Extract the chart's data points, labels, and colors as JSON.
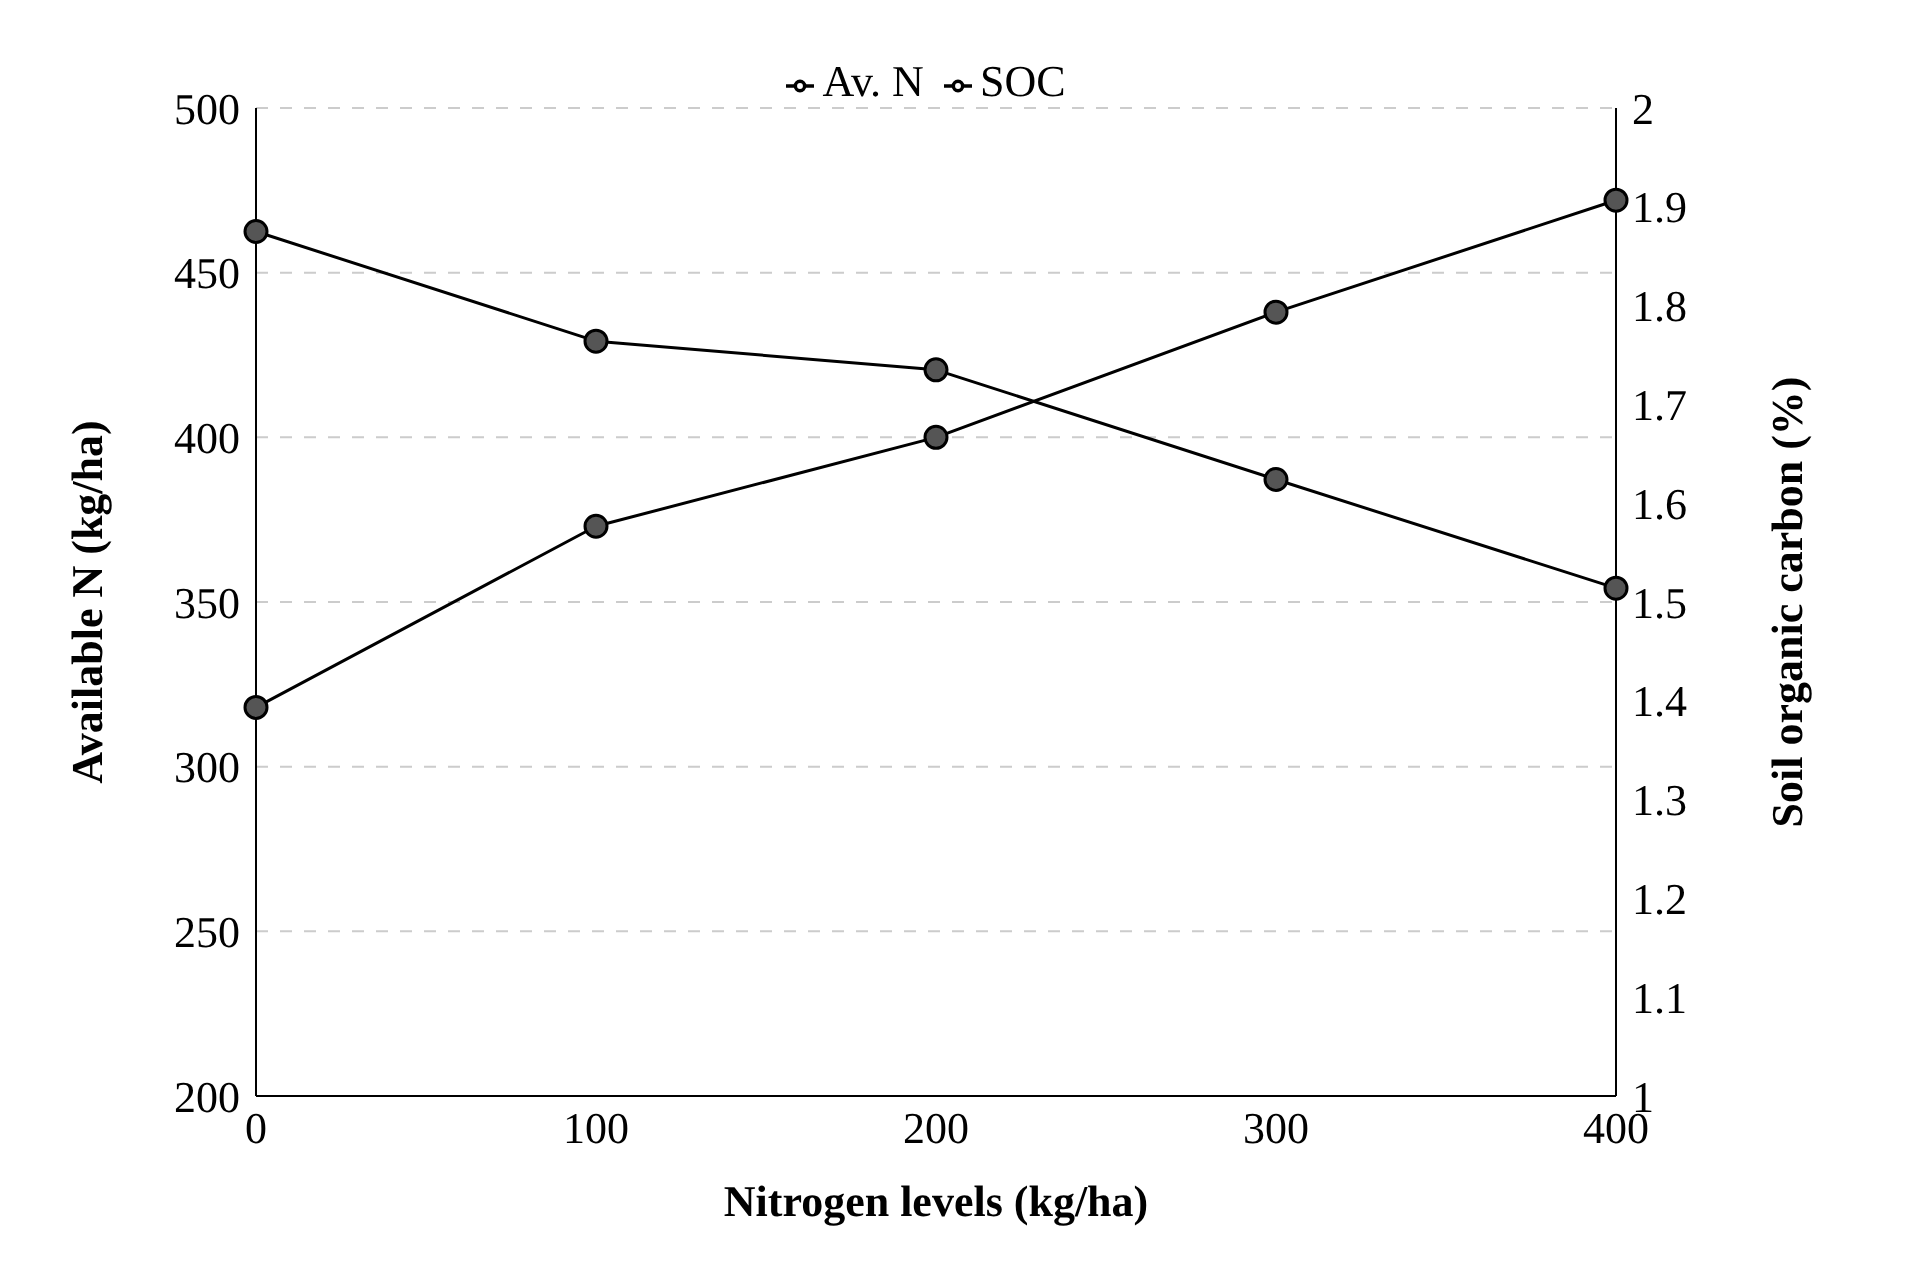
{
  "chart_data": {
    "type": "line",
    "xlabel": "Nitrogen levels (kg/ha)",
    "ylabel": "Available N (kg/ha)",
    "y2label": "Soil organic carbon (%)",
    "categories": [
      "0",
      "100",
      "200",
      "300",
      "400"
    ],
    "series": [
      {
        "name": "Av. N",
        "color": "#000000",
        "values": [
          318,
          373,
          400,
          438,
          472
        ]
      },
      {
        "name": "SOC",
        "color": "#000000",
        "axis": "y2",
        "values": [
          1.875,
          1.764,
          1.735,
          1.624,
          1.514
        ]
      }
    ],
    "ylim": [
      200,
      500
    ],
    "yticks": [
      200,
      250,
      300,
      350,
      400,
      450,
      500
    ],
    "y2lim": [
      1,
      2
    ],
    "y2ticks": [
      1,
      1.1,
      1.2,
      1.3,
      1.4,
      1.5,
      1.6,
      1.7,
      1.8,
      1.9,
      2
    ],
    "grid": "y",
    "legend": "top",
    "marker": "circle",
    "line_style": "solid"
  }
}
